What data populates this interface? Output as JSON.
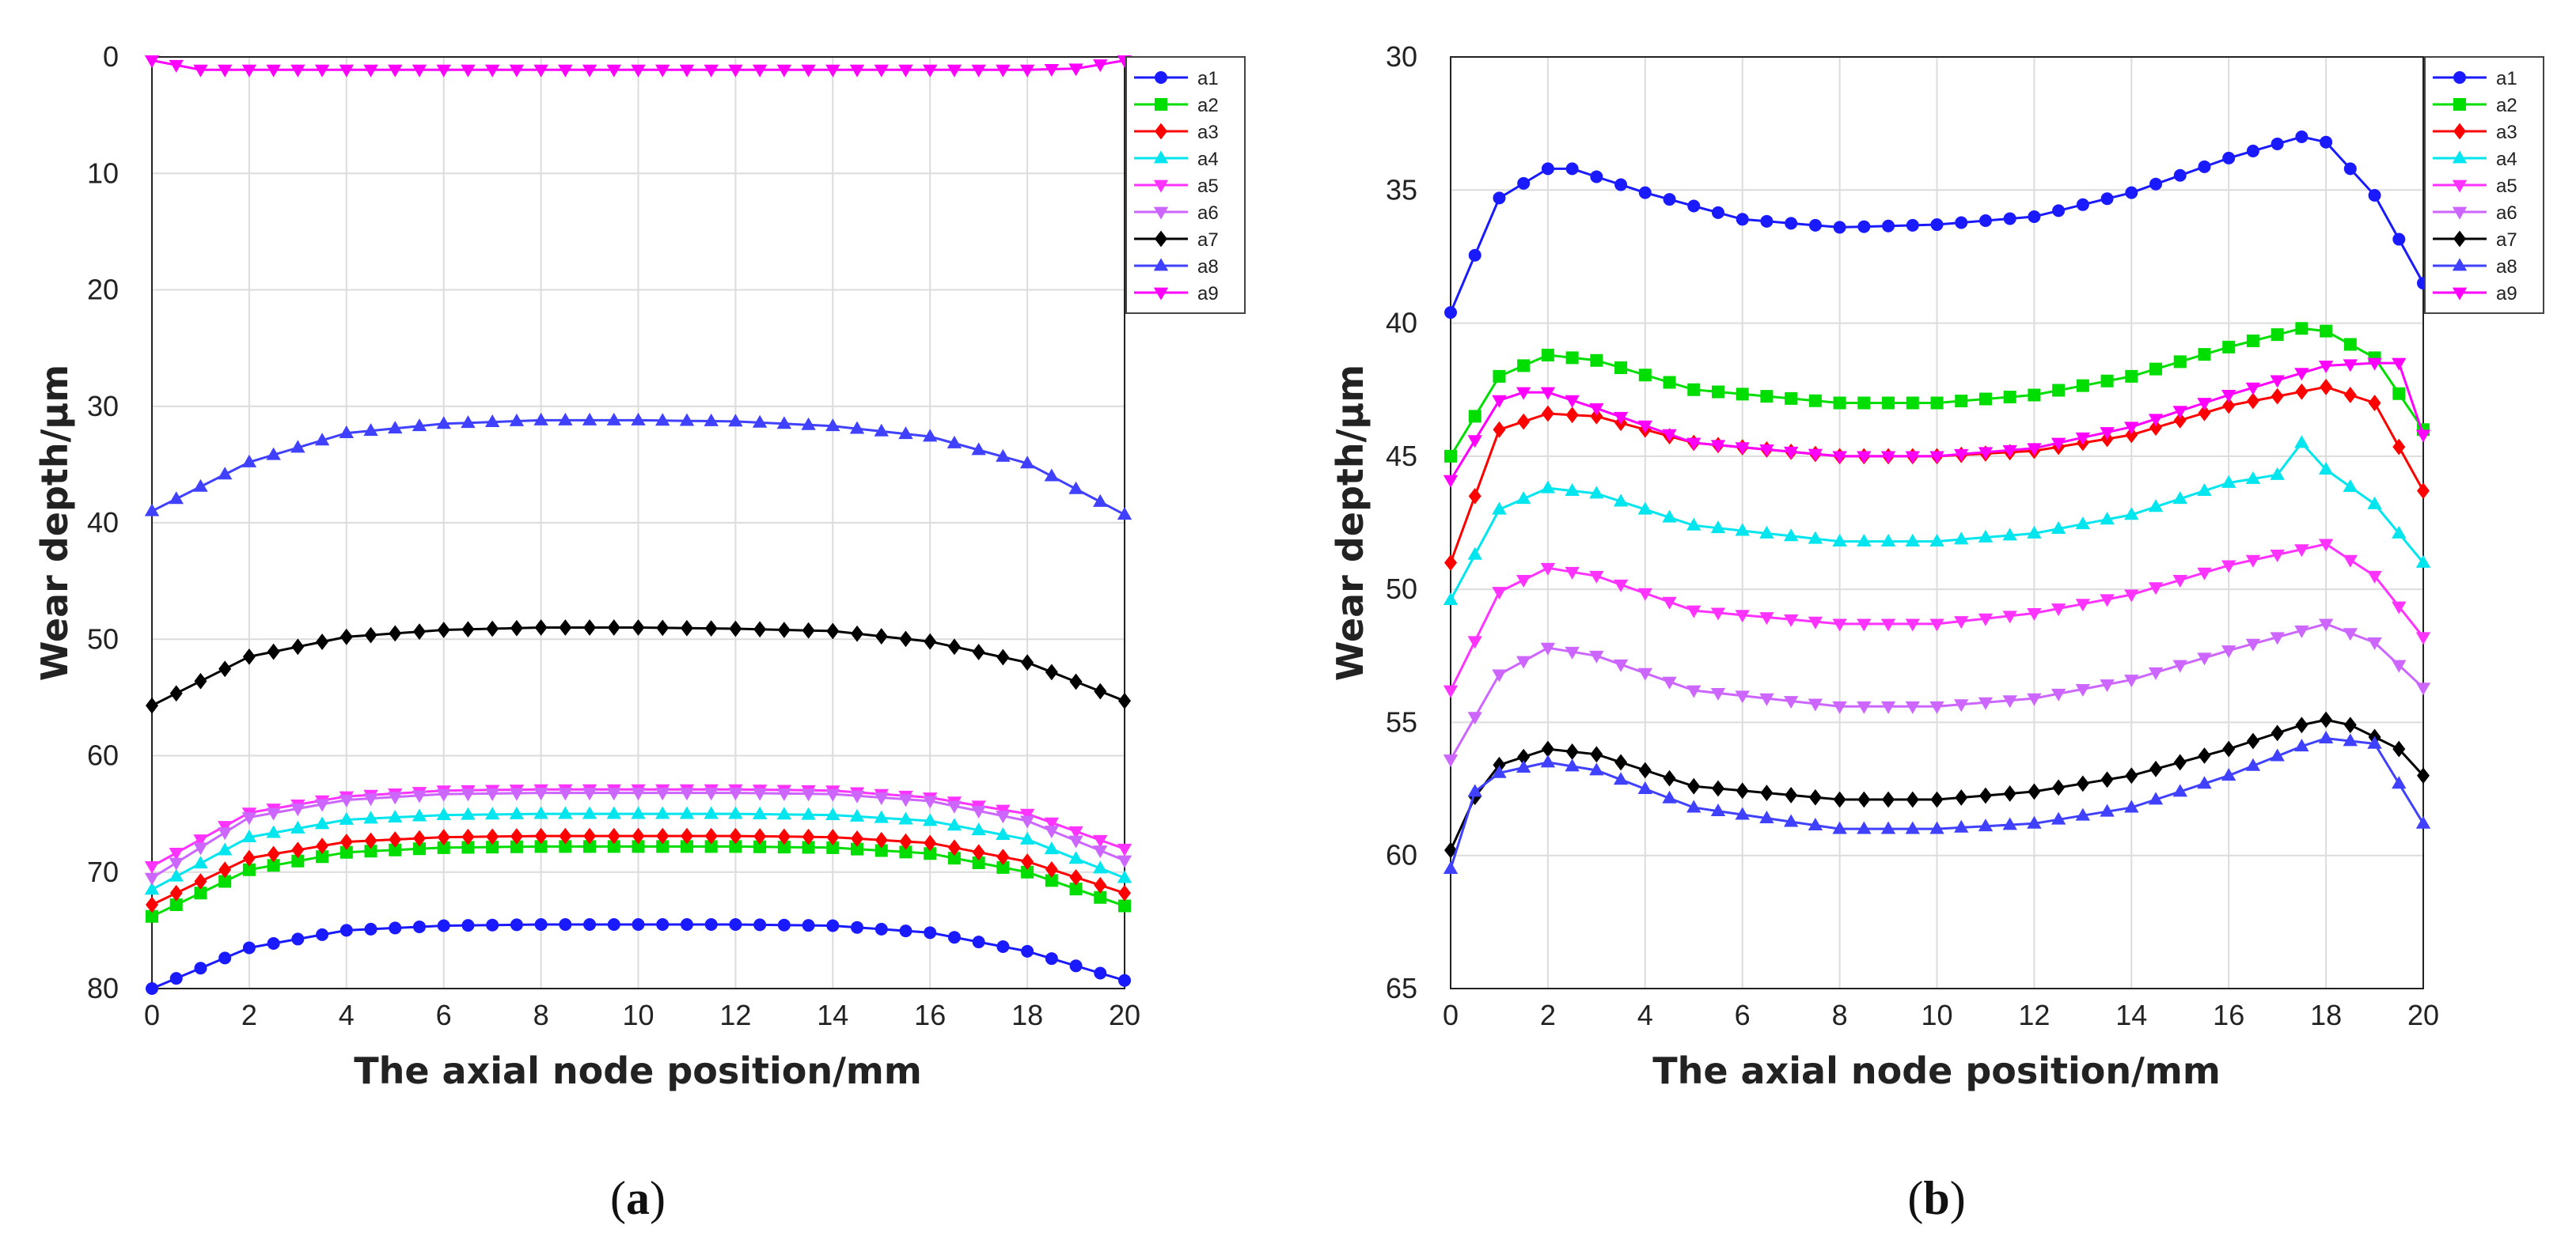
{
  "chart_data": [
    {
      "id": "a",
      "type": "line",
      "caption": "a",
      "xlabel": "The axial node position/mm",
      "ylabel": "Wear depth/μm",
      "xlim": [
        0,
        20
      ],
      "ylim": [
        0,
        80
      ],
      "yinverted": true,
      "xticks": [
        0,
        2,
        4,
        6,
        8,
        10,
        12,
        14,
        16,
        18,
        20
      ],
      "yticks": [
        0,
        10,
        20,
        30,
        40,
        50,
        60,
        70,
        80
      ],
      "grid": true,
      "legend_position": "top-right",
      "n_points": 41,
      "series": [
        {
          "name": "a1",
          "color": "#1a1aff",
          "marker": "circle",
          "points": [
            [
              0,
              80.0
            ],
            [
              2,
              76.5
            ],
            [
              4,
              75.0
            ],
            [
              6,
              74.6
            ],
            [
              8,
              74.5
            ],
            [
              10,
              74.5
            ],
            [
              12,
              74.5
            ],
            [
              14,
              74.6
            ],
            [
              16,
              75.2
            ],
            [
              18,
              76.8
            ],
            [
              20,
              79.3
            ]
          ]
        },
        {
          "name": "a2",
          "color": "#00dd00",
          "marker": "square",
          "points": [
            [
              0,
              73.8
            ],
            [
              2,
              69.8
            ],
            [
              4,
              68.3
            ],
            [
              6,
              67.9
            ],
            [
              8,
              67.8
            ],
            [
              10,
              67.8
            ],
            [
              12,
              67.8
            ],
            [
              14,
              67.9
            ],
            [
              16,
              68.4
            ],
            [
              18,
              70.0
            ],
            [
              20,
              72.9
            ]
          ]
        },
        {
          "name": "a3",
          "color": "#ff0000",
          "marker": "diamond",
          "points": [
            [
              0,
              72.8
            ],
            [
              2,
              68.8
            ],
            [
              4,
              67.4
            ],
            [
              6,
              67.0
            ],
            [
              8,
              66.9
            ],
            [
              10,
              66.9
            ],
            [
              12,
              66.9
            ],
            [
              14,
              67.0
            ],
            [
              16,
              67.5
            ],
            [
              18,
              69.1
            ],
            [
              20,
              71.8
            ]
          ]
        },
        {
          "name": "a4",
          "color": "#00e5ee",
          "marker": "triangle-up",
          "points": [
            [
              0,
              71.5
            ],
            [
              2,
              67.0
            ],
            [
              4,
              65.5
            ],
            [
              6,
              65.1
            ],
            [
              8,
              65.0
            ],
            [
              10,
              65.0
            ],
            [
              12,
              65.0
            ],
            [
              14,
              65.1
            ],
            [
              16,
              65.6
            ],
            [
              18,
              67.2
            ],
            [
              20,
              70.5
            ]
          ]
        },
        {
          "name": "a5",
          "color": "#ff33ff",
          "marker": "triangle-down",
          "points": [
            [
              0,
              69.5
            ],
            [
              2,
              64.9
            ],
            [
              4,
              63.5
            ],
            [
              6,
              63.0
            ],
            [
              8,
              62.9
            ],
            [
              10,
              62.9
            ],
            [
              12,
              62.9
            ],
            [
              14,
              63.0
            ],
            [
              16,
              63.6
            ],
            [
              18,
              65.0
            ],
            [
              20,
              68.0
            ]
          ]
        },
        {
          "name": "a6",
          "color": "#cc66ff",
          "marker": "triangle-down",
          "points": [
            [
              0,
              70.5
            ],
            [
              2,
              65.3
            ],
            [
              4,
              63.8
            ],
            [
              6,
              63.3
            ],
            [
              8,
              63.2
            ],
            [
              10,
              63.2
            ],
            [
              12,
              63.2
            ],
            [
              14,
              63.3
            ],
            [
              16,
              63.9
            ],
            [
              18,
              65.6
            ],
            [
              20,
              69.0
            ]
          ]
        },
        {
          "name": "a7",
          "color": "#000000",
          "marker": "diamond",
          "points": [
            [
              0,
              55.7
            ],
            [
              2,
              51.5
            ],
            [
              4,
              49.8
            ],
            [
              6,
              49.2
            ],
            [
              8,
              49.0
            ],
            [
              10,
              49.0
            ],
            [
              12,
              49.1
            ],
            [
              14,
              49.3
            ],
            [
              16,
              50.2
            ],
            [
              18,
              52.0
            ],
            [
              20,
              55.3
            ]
          ]
        },
        {
          "name": "a8",
          "color": "#4040ff",
          "marker": "triangle-up",
          "points": [
            [
              0,
              39.0
            ],
            [
              2,
              34.8
            ],
            [
              4,
              32.3
            ],
            [
              6,
              31.5
            ],
            [
              8,
              31.2
            ],
            [
              10,
              31.2
            ],
            [
              12,
              31.3
            ],
            [
              14,
              31.7
            ],
            [
              16,
              32.6
            ],
            [
              18,
              34.9
            ],
            [
              20,
              39.3
            ]
          ]
        },
        {
          "name": "a9",
          "color": "#ff00ff",
          "marker": "triangle-down",
          "points": [
            [
              0,
              0.3
            ],
            [
              1,
              1.1
            ],
            [
              2,
              1.1
            ],
            [
              10,
              1.1
            ],
            [
              18,
              1.1
            ],
            [
              19,
              1.0
            ],
            [
              20,
              0.3
            ]
          ]
        }
      ]
    },
    {
      "id": "b",
      "type": "line",
      "caption": "b",
      "xlabel": "The axial node position/mm",
      "ylabel": "Wear depth/μm",
      "xlim": [
        0,
        20
      ],
      "ylim": [
        30,
        65
      ],
      "yinverted": true,
      "xticks": [
        0,
        2,
        4,
        6,
        8,
        10,
        12,
        14,
        16,
        18,
        20
      ],
      "yticks": [
        30,
        35,
        40,
        45,
        50,
        55,
        60,
        65
      ],
      "grid": true,
      "legend_position": "top-right",
      "n_points": 41,
      "series": [
        {
          "name": "a1",
          "color": "#1a1aff",
          "marker": "circle",
          "points": [
            [
              0,
              39.6
            ],
            [
              1,
              35.3
            ],
            [
              2,
              34.2
            ],
            [
              2.5,
              34.2
            ],
            [
              4,
              35.1
            ],
            [
              6,
              36.1
            ],
            [
              8,
              36.4
            ],
            [
              10,
              36.3
            ],
            [
              12,
              36.0
            ],
            [
              14,
              35.1
            ],
            [
              16,
              33.8
            ],
            [
              17.5,
              33.0
            ],
            [
              18,
              33.2
            ],
            [
              19,
              35.2
            ],
            [
              20,
              38.5
            ]
          ]
        },
        {
          "name": "a2",
          "color": "#00dd00",
          "marker": "square",
          "points": [
            [
              0,
              45.0
            ],
            [
              1,
              42.0
            ],
            [
              2,
              41.2
            ],
            [
              3,
              41.4
            ],
            [
              5,
              42.5
            ],
            [
              8,
              43.0
            ],
            [
              10,
              43.0
            ],
            [
              12,
              42.7
            ],
            [
              14,
              42.0
            ],
            [
              16,
              40.9
            ],
            [
              17.5,
              40.2
            ],
            [
              18,
              40.3
            ],
            [
              19,
              41.3
            ],
            [
              20,
              44.0
            ]
          ]
        },
        {
          "name": "a3",
          "color": "#ff0000",
          "marker": "diamond",
          "points": [
            [
              0,
              49.0
            ],
            [
              1,
              44.0
            ],
            [
              2,
              43.4
            ],
            [
              3,
              43.5
            ],
            [
              5,
              44.5
            ],
            [
              8,
              45.0
            ],
            [
              10,
              45.0
            ],
            [
              12,
              44.8
            ],
            [
              14,
              44.2
            ],
            [
              16,
              43.1
            ],
            [
              18,
              42.4
            ],
            [
              19,
              43.0
            ],
            [
              20,
              46.3
            ]
          ]
        },
        {
          "name": "a4",
          "color": "#00e5ee",
          "marker": "triangle-up",
          "points": [
            [
              0,
              50.4
            ],
            [
              1,
              47.0
            ],
            [
              2,
              46.2
            ],
            [
              3,
              46.4
            ],
            [
              5,
              47.6
            ],
            [
              8,
              48.2
            ],
            [
              10,
              48.2
            ],
            [
              12,
              47.9
            ],
            [
              14,
              47.2
            ],
            [
              16,
              46.0
            ],
            [
              17,
              45.7
            ],
            [
              17.5,
              44.5
            ],
            [
              18,
              45.5
            ],
            [
              19,
              46.8
            ],
            [
              20,
              49.0
            ]
          ]
        },
        {
          "name": "a5",
          "color": "#ff33ff",
          "marker": "triangle-down",
          "points": [
            [
              0,
              53.8
            ],
            [
              1,
              50.1
            ],
            [
              2,
              49.2
            ],
            [
              3,
              49.5
            ],
            [
              5,
              50.8
            ],
            [
              8,
              51.3
            ],
            [
              10,
              51.3
            ],
            [
              12,
              50.9
            ],
            [
              14,
              50.2
            ],
            [
              16,
              49.1
            ],
            [
              18,
              48.3
            ],
            [
              19,
              49.5
            ],
            [
              20,
              51.8
            ]
          ]
        },
        {
          "name": "a6",
          "color": "#cc66ff",
          "marker": "triangle-down",
          "points": [
            [
              0,
              56.4
            ],
            [
              1,
              53.2
            ],
            [
              2,
              52.2
            ],
            [
              3,
              52.5
            ],
            [
              5,
              53.8
            ],
            [
              8,
              54.4
            ],
            [
              10,
              54.4
            ],
            [
              12,
              54.1
            ],
            [
              14,
              53.4
            ],
            [
              16,
              52.3
            ],
            [
              18,
              51.3
            ],
            [
              19,
              52.0
            ],
            [
              20,
              53.7
            ]
          ]
        },
        {
          "name": "a7",
          "color": "#000000",
          "marker": "diamond",
          "points": [
            [
              0,
              59.8
            ],
            [
              0.5,
              57.8
            ],
            [
              1,
              56.6
            ],
            [
              2,
              56.0
            ],
            [
              3,
              56.2
            ],
            [
              5,
              57.4
            ],
            [
              8,
              57.9
            ],
            [
              10,
              57.9
            ],
            [
              12,
              57.6
            ],
            [
              14,
              57.0
            ],
            [
              16,
              56.0
            ],
            [
              17.5,
              55.1
            ],
            [
              18,
              54.9
            ],
            [
              18.5,
              55.1
            ],
            [
              19.5,
              56.0
            ],
            [
              20,
              57.0
            ]
          ]
        },
        {
          "name": "a8",
          "color": "#4040ff",
          "marker": "triangle-up",
          "points": [
            [
              0,
              60.5
            ],
            [
              0.5,
              57.6
            ],
            [
              1,
              56.9
            ],
            [
              2,
              56.5
            ],
            [
              3,
              56.8
            ],
            [
              5,
              58.2
            ],
            [
              8,
              59.0
            ],
            [
              10,
              59.0
            ],
            [
              12,
              58.8
            ],
            [
              14,
              58.2
            ],
            [
              16,
              57.0
            ],
            [
              17.5,
              55.9
            ],
            [
              18,
              55.6
            ],
            [
              19,
              55.8
            ],
            [
              20,
              58.8
            ]
          ]
        },
        {
          "name": "a9",
          "color": "#ff00ff",
          "marker": "triangle-down",
          "points": [
            [
              0,
              45.9
            ],
            [
              1,
              42.9
            ],
            [
              1.5,
              42.6
            ],
            [
              2,
              42.6
            ],
            [
              3,
              43.2
            ],
            [
              5,
              44.5
            ],
            [
              8,
              45.0
            ],
            [
              10,
              45.0
            ],
            [
              12,
              44.7
            ],
            [
              14,
              43.9
            ],
            [
              16,
              42.7
            ],
            [
              18,
              41.6
            ],
            [
              19,
              41.5
            ],
            [
              19.5,
              41.5
            ],
            [
              20,
              44.2
            ]
          ]
        }
      ]
    }
  ]
}
